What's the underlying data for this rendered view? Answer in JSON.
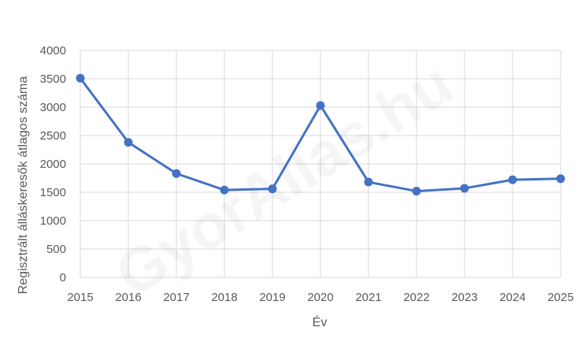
{
  "chart_data": {
    "type": "line",
    "title": "",
    "xlabel": "Év",
    "ylabel": "Regisztrált álláskeresők átlagos száma",
    "x": [
      "2015",
      "2016",
      "2017",
      "2018",
      "2019",
      "2020",
      "2021",
      "2022",
      "2023",
      "2024",
      "2025"
    ],
    "series": [
      {
        "values": [
          3510,
          2380,
          1830,
          1540,
          1560,
          3030,
          1680,
          1520,
          1570,
          1720,
          1740
        ]
      }
    ],
    "ylim": [
      0,
      4000
    ],
    "yticks": [
      "0",
      "500",
      "1000",
      "1500",
      "2000",
      "2500",
      "3000",
      "3500",
      "4000"
    ],
    "grid": true,
    "legend": "none",
    "colors": {
      "series": "#4472c4",
      "grid": "#d9d9d9",
      "text": "#595959"
    },
    "watermark": "GyorAllas.hu"
  }
}
